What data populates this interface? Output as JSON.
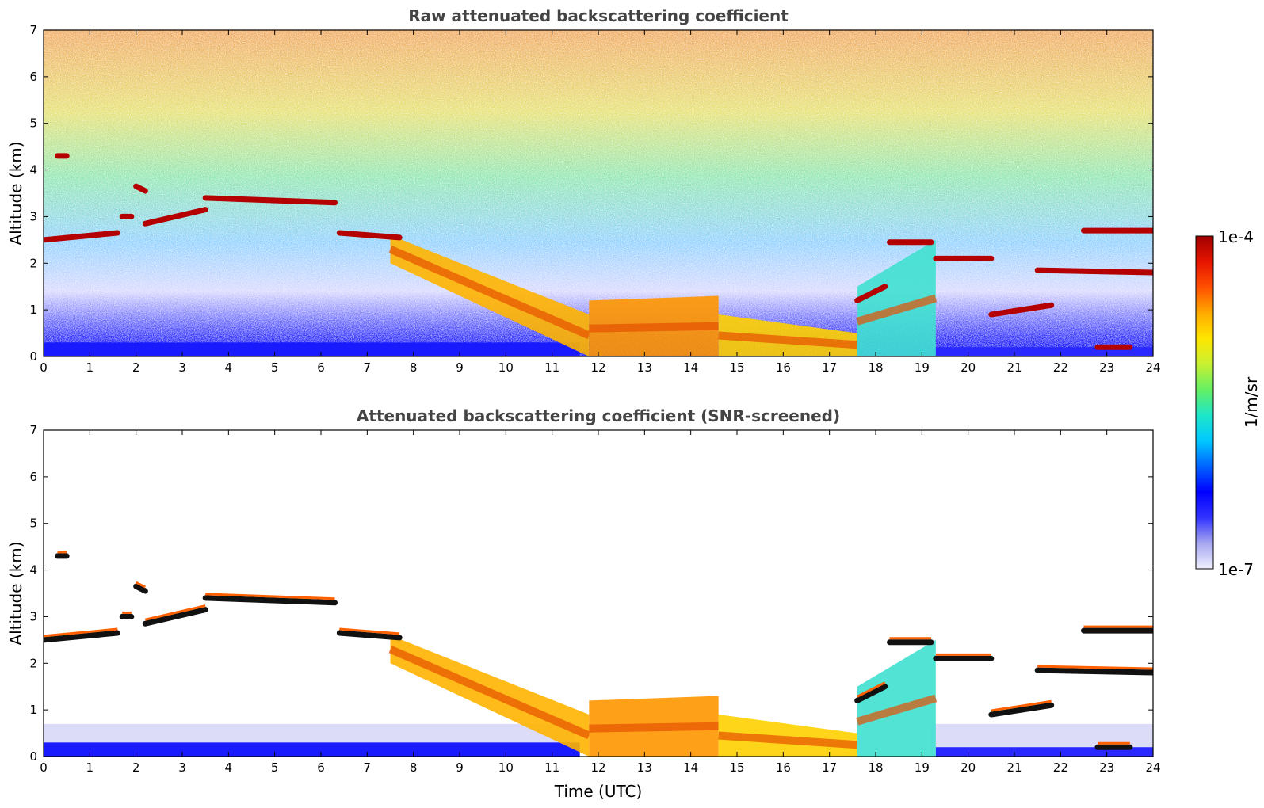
{
  "chart_data": [
    {
      "type": "heatmap",
      "title": "Raw attenuated backscattering coefficient",
      "xlabel": "",
      "ylabel": "Altitude (km)",
      "xlim": [
        0,
        24
      ],
      "ylim": [
        0,
        7
      ],
      "xticks": [
        "0",
        "1",
        "2",
        "3",
        "4",
        "5",
        "6",
        "7",
        "8",
        "9",
        "10",
        "11",
        "12",
        "13",
        "14",
        "15",
        "16",
        "17",
        "18",
        "19",
        "20",
        "21",
        "22",
        "23",
        "24"
      ],
      "yticks": [
        "0",
        "1",
        "2",
        "3",
        "4",
        "5",
        "6",
        "7"
      ],
      "grid": false,
      "noise": "high",
      "layers": [
        {
          "x": [
            0,
            1.6
          ],
          "y": [
            2.5,
            2.65
          ]
        },
        {
          "x": [
            0.3,
            0.5
          ],
          "y": [
            4.3,
            4.3
          ]
        },
        {
          "x": [
            2.0,
            2.2
          ],
          "y": [
            3.65,
            3.55
          ]
        },
        {
          "x": [
            1.7,
            1.9
          ],
          "y": [
            3.0,
            3.0
          ]
        },
        {
          "x": [
            2.2,
            3.5
          ],
          "y": [
            2.85,
            3.15
          ]
        },
        {
          "x": [
            3.5,
            6.3
          ],
          "y": [
            3.4,
            3.3
          ]
        },
        {
          "x": [
            6.4,
            7.7
          ],
          "y": [
            2.65,
            2.55
          ]
        },
        {
          "x": [
            18.3,
            19.2
          ],
          "y": [
            2.45,
            2.45
          ]
        },
        {
          "x": [
            19.3,
            20.5
          ],
          "y": [
            2.1,
            2.1
          ]
        },
        {
          "x": [
            21.5,
            24
          ],
          "y": [
            1.85,
            1.8
          ]
        },
        {
          "x": [
            22.5,
            24
          ],
          "y": [
            2.7,
            2.7
          ]
        },
        {
          "x": [
            20.5,
            21.8
          ],
          "y": [
            0.9,
            1.1
          ]
        },
        {
          "x": [
            22.8,
            23.5
          ],
          "y": [
            0.2,
            0.2
          ]
        },
        {
          "x": [
            17.6,
            18.2
          ],
          "y": [
            1.2,
            1.5
          ]
        }
      ],
      "plumes": [
        {
          "x": [
            7.5,
            11.8
          ],
          "top": [
            2.6,
            0.9
          ],
          "bottom": [
            2.0,
            0.0
          ]
        },
        {
          "x": [
            11.8,
            14.6
          ],
          "top": [
            1.2,
            1.3
          ],
          "bottom": [
            0.0,
            0.0
          ]
        },
        {
          "x": [
            14.6,
            17.6
          ],
          "top": [
            0.9,
            0.5
          ],
          "bottom": [
            0.0,
            0.0
          ]
        },
        {
          "x": [
            17.6,
            19.3
          ],
          "top": [
            1.5,
            2.5
          ],
          "bottom": [
            0.0,
            0.0
          ]
        }
      ]
    },
    {
      "type": "heatmap",
      "title": "Attenuated backscattering coefficient (SNR-screened)",
      "xlabel": "Time (UTC)",
      "ylabel": "Altitude (km)",
      "xlim": [
        0,
        24
      ],
      "ylim": [
        0,
        7
      ],
      "xticks": [
        "0",
        "1",
        "2",
        "3",
        "4",
        "5",
        "6",
        "7",
        "8",
        "9",
        "10",
        "11",
        "12",
        "13",
        "14",
        "15",
        "16",
        "17",
        "18",
        "19",
        "20",
        "21",
        "22",
        "23",
        "24"
      ],
      "yticks": [
        "0",
        "1",
        "2",
        "3",
        "4",
        "5",
        "6",
        "7"
      ],
      "grid": false,
      "noise": "screened"
    }
  ],
  "colorbar": {
    "label": "1/m/sr",
    "max_label": "1e-4",
    "min_label": "1e-7",
    "scale": "log",
    "range": [
      1e-07,
      0.0001
    ],
    "colormap": [
      "#f0f0ff",
      "#a6a6f0",
      "#3232ff",
      "#0000ff",
      "#0064ff",
      "#00c8ff",
      "#1ee6c8",
      "#64f064",
      "#c8f032",
      "#ffe600",
      "#ffaa00",
      "#ff5000",
      "#e61400",
      "#a00000"
    ]
  }
}
